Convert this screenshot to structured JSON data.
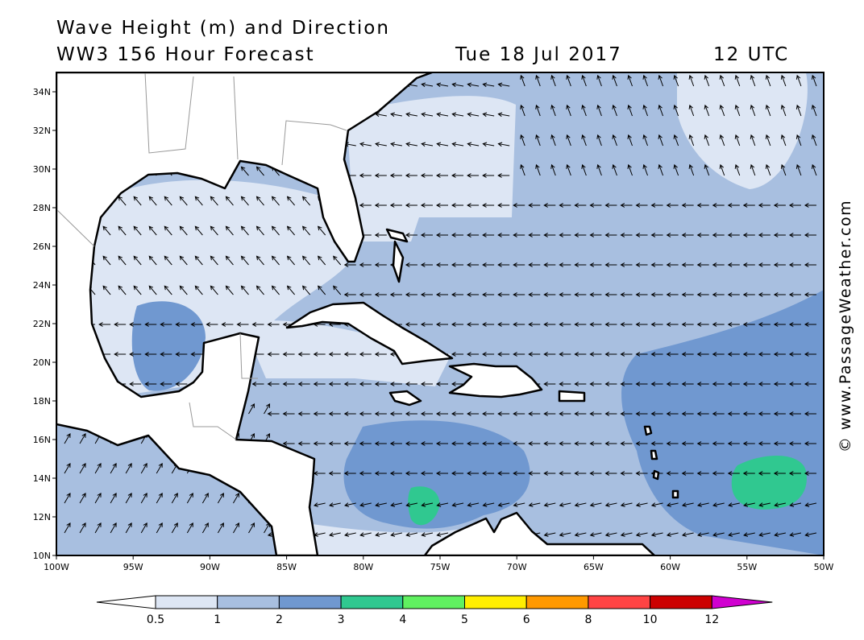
{
  "header": {
    "title": "Wave Height (m) and Direction",
    "subtitle": "WW3 156 Hour Forecast",
    "date": "Tue 18 Jul 2017",
    "time": "12 UTC"
  },
  "map": {
    "lat_labels": [
      "10N",
      "12N",
      "14N",
      "16N",
      "18N",
      "20N",
      "22N",
      "24N",
      "26N",
      "28N",
      "30N",
      "32N",
      "34N"
    ],
    "lon_labels": [
      "100W",
      "95W",
      "90W",
      "85W",
      "80W",
      "75W",
      "70W",
      "65W",
      "60W",
      "55W",
      "50W"
    ]
  },
  "legend": {
    "labels": [
      "0.5",
      "1",
      "2",
      "3",
      "4",
      "5",
      "6",
      "8",
      "10",
      "12"
    ]
  },
  "watermark": "© www.PassageWeather.com"
}
